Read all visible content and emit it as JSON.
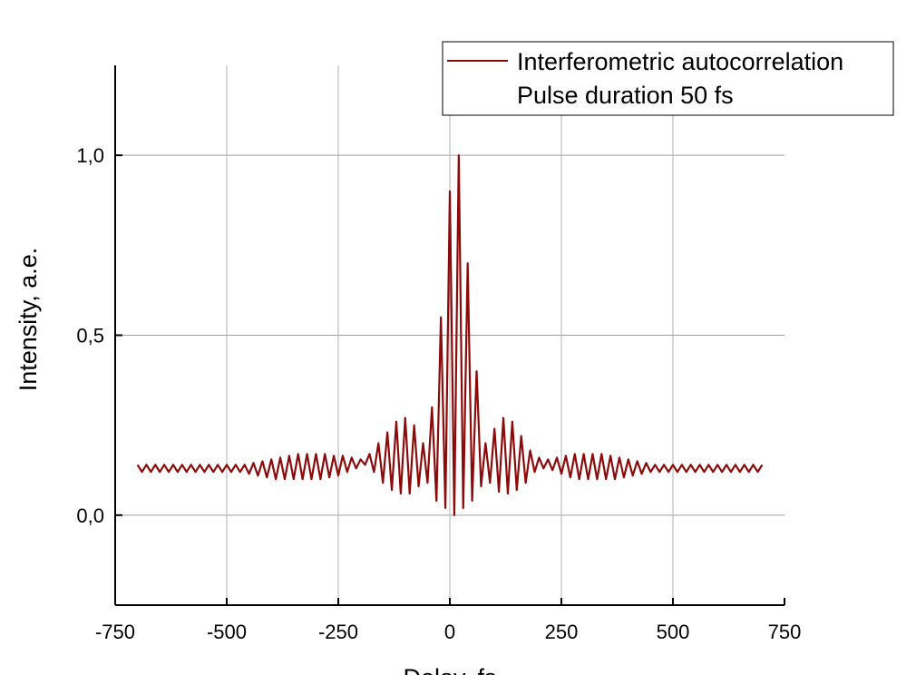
{
  "chart_data": {
    "type": "line",
    "xlabel": "Delay, fs",
    "ylabel": "Intensity, a.e.",
    "legend_note": "Pulse duration 50 fs",
    "legend": "upper right",
    "grid": true,
    "xlim": [
      -750,
      750
    ],
    "xticks": [
      -750,
      -500,
      -250,
      0,
      250,
      500,
      750
    ],
    "ylim": [
      -0.25,
      1.25
    ],
    "yticks": [
      {
        "value": 0,
        "label": "0,0"
      },
      {
        "value": 0.5,
        "label": "0,5"
      },
      {
        "value": 1,
        "label": "1,0"
      }
    ],
    "x": [
      -700,
      -690,
      -680,
      -670,
      -660,
      -650,
      -640,
      -630,
      -620,
      -610,
      -600,
      -590,
      -580,
      -570,
      -560,
      -550,
      -540,
      -530,
      -520,
      -510,
      -500,
      -490,
      -480,
      -470,
      -460,
      -450,
      -440,
      -430,
      -420,
      -410,
      -400,
      -390,
      -380,
      -370,
      -360,
      -350,
      -340,
      -330,
      -320,
      -310,
      -300,
      -290,
      -280,
      -270,
      -260,
      -250,
      -240,
      -230,
      -220,
      -210,
      -200,
      -190,
      -180,
      -170,
      -160,
      -150,
      -140,
      -130,
      -120,
      -110,
      -100,
      -90,
      -80,
      -70,
      -60,
      -50,
      -40,
      -30,
      -20,
      -10,
      0,
      10,
      20,
      30,
      40,
      50,
      60,
      70,
      80,
      90,
      100,
      110,
      120,
      130,
      140,
      150,
      160,
      170,
      180,
      190,
      200,
      210,
      220,
      230,
      240,
      250,
      260,
      270,
      280,
      290,
      300,
      310,
      320,
      330,
      340,
      350,
      360,
      370,
      380,
      390,
      400,
      410,
      420,
      430,
      440,
      450,
      460,
      470,
      480,
      490,
      500,
      510,
      520,
      530,
      540,
      550,
      560,
      570,
      580,
      590,
      600,
      610,
      620,
      630,
      640,
      650,
      660,
      670,
      680,
      690,
      700
    ],
    "series": [
      {
        "name": "Interferometric autocorrelation",
        "color": "#8b0a0a",
        "values": [
          0.14,
          0.12,
          0.14,
          0.12,
          0.14,
          0.12,
          0.14,
          0.12,
          0.14,
          0.12,
          0.14,
          0.12,
          0.14,
          0.12,
          0.14,
          0.12,
          0.14,
          0.12,
          0.14,
          0.12,
          0.14,
          0.12,
          0.14,
          0.12,
          0.14,
          0.115,
          0.145,
          0.11,
          0.15,
          0.105,
          0.155,
          0.1,
          0.16,
          0.1,
          0.165,
          0.1,
          0.17,
          0.1,
          0.17,
          0.1,
          0.17,
          0.1,
          0.17,
          0.105,
          0.165,
          0.11,
          0.165,
          0.12,
          0.16,
          0.13,
          0.155,
          0.14,
          0.17,
          0.12,
          0.2,
          0.09,
          0.23,
          0.07,
          0.26,
          0.06,
          0.27,
          0.06,
          0.25,
          0.08,
          0.2,
          0.09,
          0.3,
          0.04,
          0.55,
          0.02,
          0.9,
          0,
          1.0,
          0.02,
          0.7,
          0.04,
          0.4,
          0.08,
          0.2,
          0.09,
          0.24,
          0.065,
          0.27,
          0.06,
          0.26,
          0.07,
          0.22,
          0.09,
          0.18,
          0.12,
          0.16,
          0.13,
          0.155,
          0.125,
          0.16,
          0.115,
          0.165,
          0.105,
          0.17,
          0.1,
          0.17,
          0.1,
          0.17,
          0.1,
          0.17,
          0.1,
          0.165,
          0.1,
          0.16,
          0.105,
          0.155,
          0.11,
          0.15,
          0.115,
          0.145,
          0.12,
          0.14,
          0.12,
          0.14,
          0.12,
          0.14,
          0.12,
          0.14,
          0.12,
          0.14,
          0.12,
          0.14,
          0.12,
          0.14,
          0.12,
          0.14,
          0.12,
          0.14,
          0.12,
          0.14,
          0.12,
          0.14,
          0.12,
          0.14,
          0.12,
          0.14
        ]
      }
    ]
  }
}
